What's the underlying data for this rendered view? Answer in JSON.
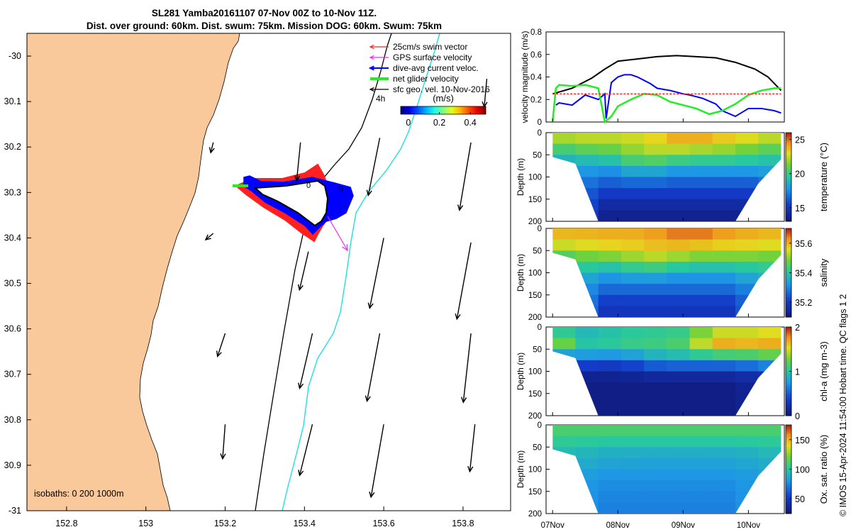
{
  "title": {
    "line1": "SL281 Yamba20161107 07-Nov 00Z to 10-Nov 11Z.",
    "line2": "Dist. over ground: 60km. Dist. swum: 75km. Mission DOG: 60km. Swum: 75km"
  },
  "credit": "© IMOS 15-Apr-2024 11:54:00 Hobart time. QC flags 1  2",
  "colors": {
    "land": "#f9c89b",
    "swim_vector": "#ff2020",
    "gps_velocity": "#ff20ff",
    "current": "#0000ff",
    "net_glider": "#22ee22",
    "isobath": "#20e0e0",
    "track": "#000000"
  },
  "chart_data": [
    {
      "id": "map",
      "type": "map",
      "x_ticks": [
        "152.8",
        "153",
        "153.2",
        "153.4",
        "153.6",
        "153.8"
      ],
      "x_tick_values": [
        152.8,
        153.0,
        153.2,
        153.4,
        153.6,
        153.8
      ],
      "y_ticks": [
        "-30",
        "30.1",
        "30.2",
        "30.3",
        "30.4",
        "30.5",
        "30.6",
        "30.7",
        "30.8",
        "30.9",
        "-31"
      ],
      "y_tick_values": [
        -30.0,
        -30.1,
        -30.2,
        -30.3,
        -30.4,
        -30.5,
        -30.6,
        -30.7,
        -30.8,
        -30.9,
        -31.0
      ],
      "xlim": [
        152.7,
        153.92
      ],
      "ylim": [
        -31.0,
        -29.95
      ],
      "legend": [
        {
          "label": "25cm/s swim vector",
          "color_key": "swim_vector"
        },
        {
          "label": "GPS surface velocity",
          "color_key": "gps_velocity"
        },
        {
          "label": "dive-avg current veloc.",
          "color_key": "current"
        },
        {
          "label": "net glider velocity",
          "color_key": "net_glider"
        },
        {
          "label": "sfc geo. vel. 10-Nov-2016",
          "color_key": "track"
        }
      ],
      "track_time_label": "4h",
      "colorbar": {
        "label": "(m/s)",
        "ticks": [
          "0",
          "0.2",
          "0.4"
        ],
        "tick_values": [
          0,
          0.2,
          0.4
        ],
        "range": [
          -0.05,
          0.5
        ]
      },
      "isobath_label": "isobaths: 0   200  1000m",
      "track_labels": [
        "0",
        "0"
      ],
      "arrows": [
        {
          "lon": 153.86,
          "lat": -30.05,
          "u": -0.02,
          "v": -0.22
        },
        {
          "lon": 153.39,
          "lat": -30.19,
          "u": -0.03,
          "v": -0.3
        },
        {
          "lon": 153.59,
          "lat": -30.18,
          "u": -0.09,
          "v": -0.45
        },
        {
          "lon": 153.82,
          "lat": -30.19,
          "u": -0.09,
          "v": -0.53
        },
        {
          "lon": 153.17,
          "lat": -30.19,
          "u": -0.02,
          "v": -0.08
        },
        {
          "lon": 153.41,
          "lat": -30.43,
          "u": -0.07,
          "v": -0.3
        },
        {
          "lon": 153.6,
          "lat": -30.4,
          "u": -0.11,
          "v": -0.55
        },
        {
          "lon": 153.82,
          "lat": -30.41,
          "u": -0.11,
          "v": -0.6
        },
        {
          "lon": 153.17,
          "lat": -30.39,
          "u": -0.06,
          "v": -0.05
        },
        {
          "lon": 153.2,
          "lat": -30.61,
          "u": -0.06,
          "v": -0.18
        },
        {
          "lon": 153.42,
          "lat": -30.61,
          "u": -0.1,
          "v": -0.43
        },
        {
          "lon": 153.59,
          "lat": -30.61,
          "u": -0.1,
          "v": -0.53
        },
        {
          "lon": 153.82,
          "lat": -30.61,
          "u": -0.06,
          "v": -0.54
        },
        {
          "lon": 153.2,
          "lat": -30.81,
          "u": -0.02,
          "v": -0.27
        },
        {
          "lon": 153.42,
          "lat": -30.81,
          "u": -0.1,
          "v": -0.4
        },
        {
          "lon": 153.6,
          "lat": -30.81,
          "u": -0.1,
          "v": -0.57
        },
        {
          "lon": 153.83,
          "lat": -30.81,
          "u": -0.04,
          "v": -0.37
        }
      ]
    },
    {
      "id": "velocity",
      "type": "line",
      "ylabel": "velocity magnitude (m/s)",
      "ylim": [
        0,
        0.8
      ],
      "y_ticks": [
        "0",
        "0.2",
        "0.4",
        "0.6",
        "0.8"
      ],
      "y_tick_values": [
        0,
        0.2,
        0.4,
        0.6,
        0.8
      ],
      "xlim": [
        6.9,
        10.55
      ],
      "series": [
        {
          "name": "sfc geo. vel.",
          "color_key": "track",
          "x": [
            7.0,
            7.3,
            7.6,
            7.8,
            8.0,
            8.3,
            8.6,
            8.9,
            9.2,
            9.5,
            9.8,
            10.1,
            10.3,
            10.5
          ],
          "values": [
            0.25,
            0.3,
            0.39,
            0.47,
            0.54,
            0.56,
            0.58,
            0.59,
            0.58,
            0.57,
            0.53,
            0.47,
            0.4,
            0.28
          ]
        },
        {
          "name": "dive-avg current veloc.",
          "color_key": "current",
          "x": [
            7.05,
            7.1,
            7.3,
            7.5,
            7.7,
            7.8,
            7.82,
            7.9,
            8.0,
            8.1,
            8.2,
            8.3,
            8.5,
            8.6,
            8.8,
            9.0,
            9.1,
            9.3,
            9.5,
            9.6,
            9.8,
            10.0,
            10.2,
            10.4,
            10.5
          ],
          "values": [
            0.15,
            0.17,
            0.15,
            0.24,
            0.2,
            0.25,
            0.03,
            0.35,
            0.4,
            0.42,
            0.42,
            0.4,
            0.34,
            0.3,
            0.28,
            0.25,
            0.24,
            0.21,
            0.16,
            0.1,
            0.05,
            0.12,
            0.12,
            0.1,
            0.08
          ]
        },
        {
          "name": "net glider velocity",
          "color_key": "net_glider",
          "x": [
            7.0,
            7.05,
            7.1,
            7.3,
            7.5,
            7.7,
            7.8,
            7.9,
            8.0,
            8.2,
            8.4,
            8.6,
            8.8,
            9.0,
            9.2,
            9.4,
            9.6,
            9.8,
            10.0,
            10.2,
            10.4,
            10.5
          ],
          "values": [
            0.0,
            0.3,
            0.33,
            0.32,
            0.33,
            0.3,
            0.0,
            0.05,
            0.14,
            0.2,
            0.25,
            0.24,
            0.18,
            0.15,
            0.12,
            0.07,
            0.1,
            0.16,
            0.24,
            0.28,
            0.3,
            0.3
          ]
        },
        {
          "name": "swim vector",
          "color_key": "swim_vector",
          "x": [
            7.0,
            10.5
          ],
          "values": [
            0.25,
            0.25
          ]
        }
      ]
    },
    {
      "id": "temperature",
      "type": "heatmap",
      "ylabel": "Depth (m)",
      "clabel": "temperature (°C)",
      "ylim": [
        200,
        0
      ],
      "y_ticks": [
        "0",
        "50",
        "100",
        "150",
        "200"
      ],
      "y_tick_values": [
        0,
        50,
        100,
        150,
        200
      ],
      "clim": [
        13,
        26
      ],
      "c_ticks": [
        "25",
        "20",
        "15"
      ],
      "c_tick_values": [
        25,
        20,
        15
      ],
      "profile_x": [
        7.0,
        7.35,
        7.7,
        8.05,
        8.4,
        8.75,
        9.1,
        9.45,
        9.8,
        10.15,
        10.5
      ],
      "profile_maxdepth": [
        55,
        70,
        200,
        200,
        200,
        200,
        200,
        200,
        200,
        115,
        60
      ],
      "depths": [
        0,
        25,
        50,
        75,
        100,
        125,
        150,
        175,
        200
      ],
      "values": [
        [
          23,
          21,
          19,
          18,
          18,
          18,
          18,
          18,
          18
        ],
        [
          23,
          22,
          20,
          19,
          18,
          17,
          17,
          17,
          17
        ],
        [
          23,
          22,
          20,
          18,
          17,
          16,
          15,
          14,
          14
        ],
        [
          23,
          22,
          21,
          19,
          17,
          16,
          15,
          14,
          14
        ],
        [
          23,
          23,
          22,
          20,
          18,
          16,
          15,
          14,
          14
        ],
        [
          24,
          23,
          22,
          19,
          17,
          16,
          15,
          14,
          14
        ],
        [
          25,
          24,
          21,
          19,
          17,
          16,
          15,
          14,
          14
        ],
        [
          24,
          23,
          21,
          19,
          17,
          16,
          15,
          14,
          14
        ],
        [
          24,
          23,
          21,
          19,
          17,
          16,
          15,
          14,
          14
        ],
        [
          23,
          22,
          20,
          19,
          17,
          16,
          15,
          14,
          14
        ],
        [
          23,
          22,
          20,
          19,
          18,
          17,
          16,
          15,
          15
        ]
      ]
    },
    {
      "id": "salinity",
      "type": "heatmap",
      "ylabel": "Depth (m)",
      "clabel": "salinity",
      "ylim": [
        200,
        0
      ],
      "y_ticks": [
        "0",
        "50",
        "100",
        "150",
        "200"
      ],
      "y_tick_values": [
        0,
        50,
        100,
        150,
        200
      ],
      "clim": [
        35.1,
        35.7
      ],
      "c_ticks": [
        "35.6",
        "35.4",
        "35.2"
      ],
      "c_tick_values": [
        35.6,
        35.4,
        35.2
      ],
      "profile_x": [
        7.0,
        7.35,
        7.7,
        8.05,
        8.4,
        8.75,
        9.1,
        9.45,
        9.8,
        10.15,
        10.5
      ],
      "profile_maxdepth": [
        55,
        70,
        200,
        200,
        200,
        200,
        200,
        200,
        200,
        115,
        60
      ],
      "depths": [
        0,
        25,
        50,
        75,
        100,
        125,
        150,
        175,
        200
      ],
      "values": [
        [
          35.6,
          35.6,
          35.5,
          35.4,
          35.4,
          35.4,
          35.4,
          35.4,
          35.4
        ],
        [
          35.6,
          35.6,
          35.5,
          35.45,
          35.4,
          35.35,
          35.35,
          35.35,
          35.35
        ],
        [
          35.62,
          35.6,
          35.55,
          35.45,
          35.35,
          35.3,
          35.25,
          35.2,
          35.2
        ],
        [
          35.62,
          35.6,
          35.55,
          35.45,
          35.35,
          35.3,
          35.25,
          35.2,
          35.2
        ],
        [
          35.62,
          35.6,
          35.58,
          35.5,
          35.4,
          35.3,
          35.25,
          35.2,
          35.2
        ],
        [
          35.65,
          35.62,
          35.58,
          35.5,
          35.35,
          35.3,
          35.25,
          35.2,
          35.2
        ],
        [
          35.68,
          35.65,
          35.55,
          35.45,
          35.35,
          35.3,
          35.25,
          35.2,
          35.2
        ],
        [
          35.65,
          35.62,
          35.55,
          35.45,
          35.35,
          35.3,
          35.25,
          35.2,
          35.2
        ],
        [
          35.62,
          35.6,
          35.55,
          35.45,
          35.35,
          35.3,
          35.25,
          35.2,
          35.2
        ],
        [
          35.62,
          35.6,
          35.55,
          35.45,
          35.4,
          35.35,
          35.3,
          35.3,
          35.3
        ],
        [
          35.6,
          35.58,
          35.52,
          35.45,
          35.4,
          35.35,
          35.35,
          35.35,
          35.35
        ]
      ]
    },
    {
      "id": "chla",
      "type": "heatmap",
      "ylabel": "Depth (m)",
      "clabel": "chl-a (mg m-3)",
      "ylim": [
        200,
        0
      ],
      "y_ticks": [
        "0",
        "50",
        "100",
        "150",
        "200"
      ],
      "y_tick_values": [
        0,
        50,
        100,
        150,
        200
      ],
      "clim": [
        0,
        2
      ],
      "c_ticks": [
        "2",
        "1",
        "0"
      ],
      "c_tick_values": [
        2,
        1,
        0
      ],
      "profile_x": [
        7.0,
        7.35,
        7.7,
        8.05,
        8.4,
        8.75,
        9.1,
        9.45,
        9.8,
        10.15,
        10.5
      ],
      "profile_maxdepth": [
        55,
        70,
        200,
        200,
        200,
        200,
        200,
        200,
        200,
        115,
        60
      ],
      "depths": [
        0,
        25,
        50,
        75,
        100,
        125,
        150,
        175,
        200
      ],
      "values": [
        [
          0.6,
          1.9,
          1.2,
          0.5,
          0.2,
          0.1,
          0.1,
          0.1,
          0.1
        ],
        [
          0.8,
          1.0,
          1.0,
          0.6,
          0.2,
          0.1,
          0.1,
          0.1,
          0.1
        ],
        [
          0.9,
          1.1,
          1.0,
          0.6,
          0.2,
          0.1,
          0.1,
          0.1,
          0.1
        ],
        [
          0.9,
          1.1,
          1.0,
          0.5,
          0.2,
          0.1,
          0.1,
          0.1,
          0.1
        ],
        [
          1.0,
          1.2,
          1.1,
          0.7,
          0.3,
          0.1,
          0.1,
          0.1,
          0.1
        ],
        [
          1.0,
          1.1,
          1.1,
          0.8,
          0.3,
          0.1,
          0.1,
          0.1,
          0.1
        ],
        [
          1.0,
          1.3,
          1.2,
          0.8,
          0.3,
          0.1,
          0.1,
          0.1,
          0.1
        ],
        [
          1.1,
          1.9,
          1.5,
          0.8,
          0.3,
          0.1,
          0.1,
          0.1,
          0.1
        ],
        [
          1.1,
          1.9,
          1.5,
          0.8,
          0.3,
          0.1,
          0.1,
          0.1,
          0.1
        ],
        [
          1.2,
          1.8,
          1.5,
          0.9,
          0.4,
          0.2,
          0.2,
          0.2,
          0.2
        ],
        [
          1.3,
          1.9,
          1.6,
          1.0,
          0.4,
          0.2,
          0.2,
          0.2,
          0.2
        ]
      ]
    },
    {
      "id": "oxygen",
      "type": "heatmap",
      "ylabel": "Depth (m)",
      "clabel": "Ox. sat. ratio (%)",
      "ylim": [
        200,
        0
      ],
      "y_ticks": [
        "0",
        "50",
        "100",
        "150",
        "200"
      ],
      "y_tick_values": [
        0,
        50,
        100,
        150,
        200
      ],
      "clim": [
        25,
        175
      ],
      "c_ticks": [
        "150",
        "100",
        "50"
      ],
      "c_tick_values": [
        150,
        100,
        50
      ],
      "x_ticks": [
        "07Nov",
        "08Nov",
        "09Nov",
        "10Nov"
      ],
      "x_tick_values": [
        7.0,
        8.0,
        9.0,
        10.0
      ],
      "profile_x": [
        7.0,
        7.35,
        7.7,
        8.05,
        8.4,
        8.75,
        9.1,
        9.45,
        9.8,
        10.15,
        10.5
      ],
      "profile_maxdepth": [
        55,
        70,
        200,
        200,
        200,
        200,
        200,
        200,
        200,
        115,
        60
      ],
      "depths": [
        0,
        25,
        50,
        75,
        100,
        125,
        150,
        175,
        200
      ],
      "values": [
        [
          115,
          110,
          100,
          95,
          90,
          85,
          85,
          85,
          85
        ],
        [
          115,
          110,
          100,
          95,
          90,
          85,
          85,
          85,
          85
        ],
        [
          115,
          110,
          95,
          90,
          85,
          80,
          78,
          76,
          75
        ],
        [
          115,
          110,
          95,
          90,
          85,
          80,
          78,
          76,
          75
        ],
        [
          115,
          110,
          95,
          88,
          85,
          80,
          78,
          76,
          75
        ],
        [
          115,
          110,
          95,
          88,
          85,
          80,
          78,
          76,
          75
        ],
        [
          115,
          110,
          95,
          88,
          85,
          80,
          78,
          76,
          75
        ],
        [
          115,
          110,
          95,
          88,
          85,
          80,
          78,
          76,
          75
        ],
        [
          115,
          110,
          95,
          88,
          85,
          80,
          78,
          76,
          75
        ],
        [
          115,
          110,
          98,
          92,
          88,
          85,
          85,
          85,
          85
        ],
        [
          115,
          110,
          100,
          95,
          90,
          88,
          88,
          88,
          88
        ]
      ]
    }
  ]
}
